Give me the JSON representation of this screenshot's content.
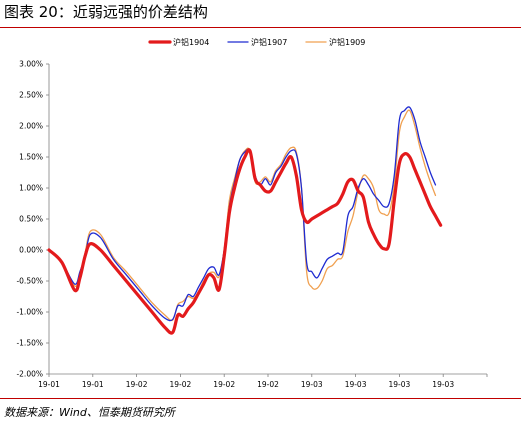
{
  "title": "图表 20：近弱远强的价差结构",
  "source": "数据来源：Wind、恒泰期货研究所",
  "chart_data": {
    "type": "line",
    "title": "",
    "xlabel": "",
    "ylabel": "",
    "ylim": [
      -0.02,
      0.03
    ],
    "yticks": [
      "3.00%",
      "2.50%",
      "2.00%",
      "1.50%",
      "1.00%",
      "0.50%",
      "0.00%",
      "-0.50%",
      "-1.00%",
      "-1.50%",
      "-2.00%"
    ],
    "xticks": [
      "19-01",
      "19-01",
      "19-02",
      "19-02",
      "19-02",
      "19-02",
      "19-03",
      "19-03",
      "19-03",
      "19-03"
    ],
    "legend": "top",
    "x": [
      0,
      5,
      10,
      12,
      14,
      16,
      20,
      25,
      30,
      35,
      40,
      45,
      48,
      50,
      52,
      54,
      56,
      58,
      60,
      62,
      64,
      66,
      68,
      70,
      72,
      74,
      76,
      78,
      80,
      82,
      84,
      86,
      88,
      90,
      92,
      94,
      96,
      98,
      100,
      102,
      104,
      106,
      108,
      110,
      112,
      114,
      116,
      118,
      120,
      122,
      124,
      126,
      128,
      130,
      132,
      134,
      136,
      138,
      140,
      142,
      144,
      146,
      148,
      150,
      152,
      154,
      156,
      158,
      160,
      162,
      164,
      166,
      168,
      170
    ],
    "series": [
      {
        "name": "沪铝1904",
        "color": "#e31a1c",
        "values": [
          0.0,
          -0.002,
          -0.0065,
          -0.0045,
          -0.001,
          0.001,
          0.0,
          -0.0025,
          -0.005,
          -0.0075,
          -0.01,
          -0.0125,
          -0.0133,
          -0.0105,
          -0.0107,
          -0.0095,
          -0.0085,
          -0.007,
          -0.0055,
          -0.004,
          -0.0045,
          -0.0064,
          -0.001,
          0.006,
          0.01,
          0.013,
          0.015,
          0.016,
          0.0115,
          0.0105,
          0.0095,
          0.0095,
          0.011,
          0.0125,
          0.014,
          0.015,
          0.012,
          0.0065,
          0.0045,
          0.005,
          0.0055,
          0.006,
          0.0065,
          0.007,
          0.0075,
          0.009,
          0.011,
          0.0113,
          0.0095,
          0.0085,
          0.0045,
          0.0025,
          0.001,
          0.0002,
          0.001,
          0.008,
          0.014,
          0.0155,
          0.015,
          0.013,
          0.011,
          0.009,
          0.007,
          0.0055,
          0.004,
          null,
          null,
          null,
          null,
          null,
          null,
          null,
          null,
          null
        ]
      },
      {
        "name": "沪铝1907",
        "color": "#1f2bd1",
        "values": [
          0.0,
          -0.002,
          -0.0055,
          -0.0035,
          -0.001,
          0.0025,
          0.002,
          -0.0015,
          -0.004,
          -0.0065,
          -0.009,
          -0.011,
          -0.0112,
          -0.009,
          -0.009,
          -0.0072,
          -0.0075,
          -0.006,
          -0.0045,
          -0.003,
          -0.0028,
          -0.004,
          0.0,
          0.007,
          0.011,
          0.0145,
          0.0158,
          0.016,
          0.012,
          0.0105,
          0.0115,
          0.0105,
          0.0125,
          0.0135,
          0.015,
          0.016,
          0.0155,
          0.01,
          -0.002,
          -0.0035,
          -0.0045,
          -0.003,
          -0.0015,
          -0.001,
          -0.0005,
          -0.0003,
          0.0055,
          0.007,
          0.01,
          0.0115,
          0.0105,
          0.009,
          0.008,
          0.007,
          0.0075,
          0.012,
          0.021,
          0.0225,
          0.023,
          0.021,
          0.0175,
          0.015,
          0.0125,
          0.0105,
          null,
          null,
          null,
          null,
          null,
          null,
          null,
          null,
          null,
          null
        ]
      },
      {
        "name": "沪铝1909",
        "color": "#f0a050",
        "values": [
          0.0,
          -0.002,
          -0.0058,
          -0.004,
          -0.0005,
          0.003,
          0.0025,
          -0.0012,
          -0.0035,
          -0.006,
          -0.0085,
          -0.0105,
          -0.0113,
          -0.0088,
          -0.0083,
          -0.0075,
          -0.0078,
          -0.0068,
          -0.005,
          -0.0038,
          -0.0036,
          -0.0043,
          0.0,
          0.008,
          0.0115,
          0.0145,
          0.016,
          0.016,
          0.011,
          0.011,
          0.0118,
          0.011,
          0.0128,
          0.0138,
          0.0155,
          0.0165,
          0.0158,
          0.01,
          -0.0035,
          -0.006,
          -0.0062,
          -0.005,
          -0.003,
          -0.0025,
          -0.0015,
          -0.001,
          0.003,
          0.0055,
          0.0095,
          0.012,
          0.0115,
          0.01,
          0.0065,
          0.0058,
          0.006,
          0.0105,
          0.019,
          0.0215,
          0.0225,
          0.02,
          0.0165,
          0.0135,
          0.011,
          0.0088,
          null,
          null,
          null,
          null,
          null,
          null,
          null,
          null,
          null,
          null
        ]
      }
    ]
  }
}
